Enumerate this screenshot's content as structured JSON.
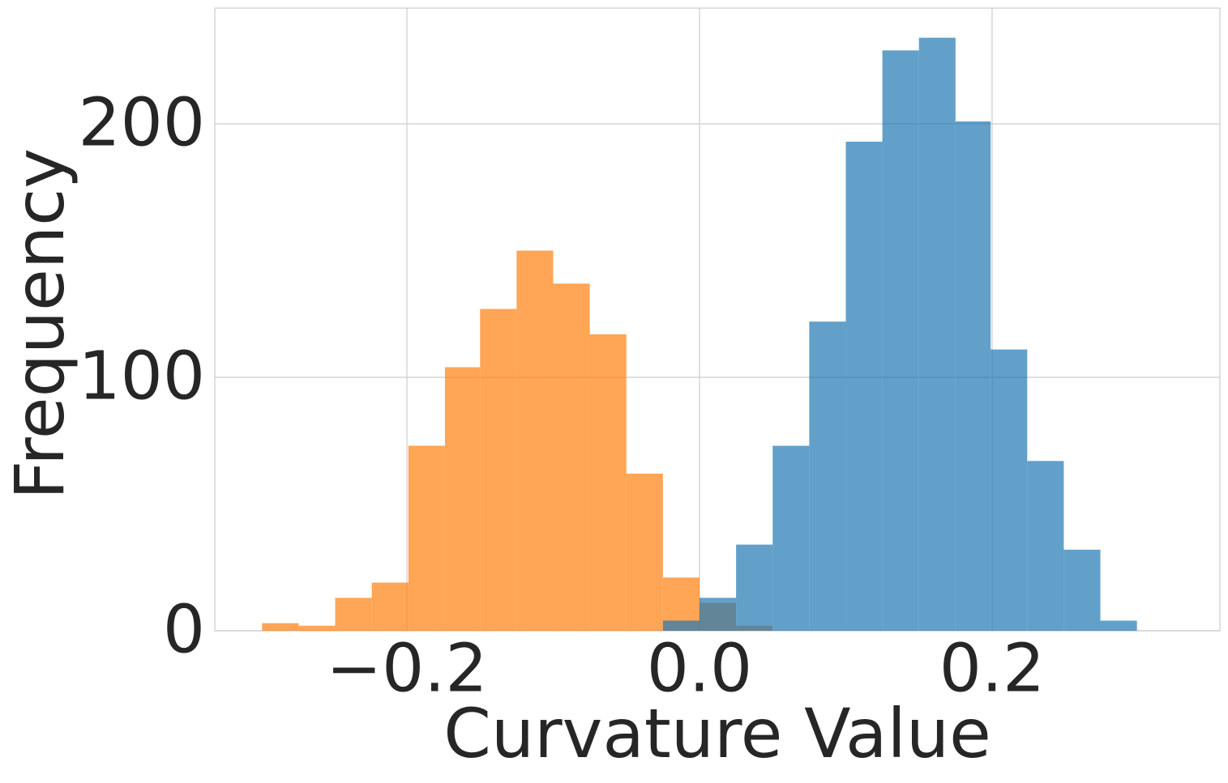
{
  "chart_data": {
    "type": "histogram",
    "xlabel": "Curvature Value",
    "ylabel": "Frequency",
    "series": [
      {
        "color": "#ff7f0e",
        "opacity": 0.7,
        "bins": [
          -0.299,
          -0.274,
          -0.249,
          -0.224,
          -0.199,
          -0.174,
          -0.15,
          -0.125,
          -0.1,
          -0.075,
          -0.05,
          -0.025,
          0.0,
          0.025,
          0.05
        ],
        "values": [
          3,
          2,
          13,
          19,
          73,
          104,
          127,
          150,
          137,
          117,
          62,
          21,
          11,
          2
        ]
      },
      {
        "color": "#1f77b4",
        "opacity": 0.7,
        "bins": [
          -0.025,
          0.0,
          0.025,
          0.05,
          0.075,
          0.1,
          0.125,
          0.15,
          0.175,
          0.199,
          0.224,
          0.249,
          0.274,
          0.299
        ],
        "values": [
          4,
          13,
          34,
          73,
          122,
          193,
          229,
          234,
          201,
          111,
          67,
          32,
          4
        ]
      }
    ],
    "xlim": [
      -0.3313,
      0.3557
    ],
    "ylim": [
      0,
      245.7
    ],
    "xticks": [
      {
        "value": -0.2,
        "label": "−0.2"
      },
      {
        "value": 0,
        "label": "0.0"
      },
      {
        "value": 0.2,
        "label": "0.2"
      }
    ],
    "yticks": [
      0,
      100,
      200
    ],
    "grid": true
  }
}
